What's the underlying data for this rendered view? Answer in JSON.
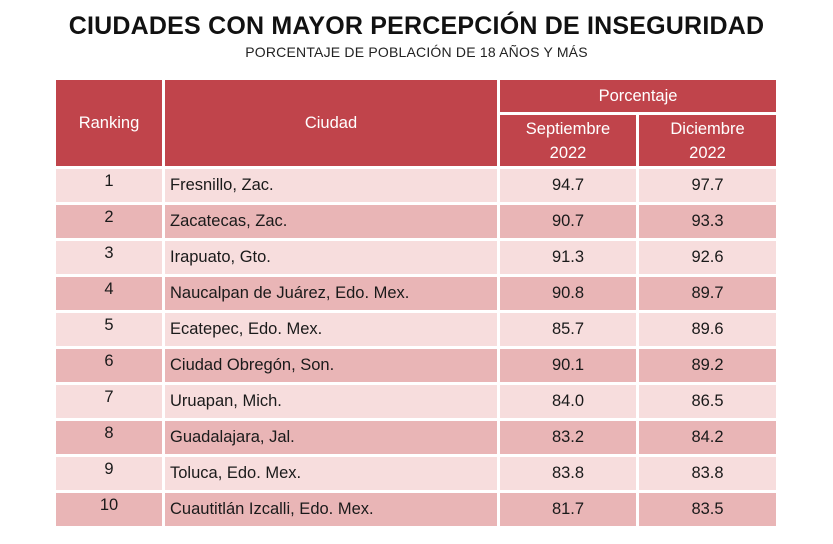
{
  "title": "CIUDADES CON MAYOR PERCEPCIÓN DE INSEGURIDAD",
  "subtitle": "PORCENTAJE DE POBLACIÓN DE 18 AÑOS Y MÁS",
  "headers": {
    "ranking": "Ranking",
    "city": "Ciudad",
    "percentage": "Porcentaje",
    "sep_line1": "Septiembre",
    "sep_line2": "2022",
    "dec_line1": "Diciembre",
    "dec_line2": "2022"
  },
  "rows": [
    {
      "rank": "1",
      "city": "Fresnillo, Zac.",
      "sep": "94.7",
      "dec": "97.7"
    },
    {
      "rank": "2",
      "city": "Zacatecas, Zac.",
      "sep": "90.7",
      "dec": "93.3"
    },
    {
      "rank": "3",
      "city": "Irapuato, Gto.",
      "sep": "91.3",
      "dec": "92.6"
    },
    {
      "rank": "4",
      "city": "Naucalpan de Juárez, Edo. Mex.",
      "sep": "90.8",
      "dec": "89.7"
    },
    {
      "rank": "5",
      "city": "Ecatepec, Edo. Mex.",
      "sep": "85.7",
      "dec": "89.6"
    },
    {
      "rank": "6",
      "city": "Ciudad Obregón, Son.",
      "sep": "90.1",
      "dec": "89.2"
    },
    {
      "rank": "7",
      "city": "Uruapan, Mich.",
      "sep": "84.0",
      "dec": "86.5"
    },
    {
      "rank": "8",
      "city": "Guadalajara, Jal.",
      "sep": "83.2",
      "dec": "84.2"
    },
    {
      "rank": "9",
      "city": "Toluca, Edo. Mex.",
      "sep": "83.8",
      "dec": "83.8"
    },
    {
      "rank": "10",
      "city": "Cuautitlán Izcalli, Edo. Mex.",
      "sep": "81.7",
      "dec": "83.5"
    }
  ],
  "colors": {
    "header_bg": "#c0444b",
    "row_light": "#f7dddd",
    "row_dark": "#e9b5b6"
  }
}
